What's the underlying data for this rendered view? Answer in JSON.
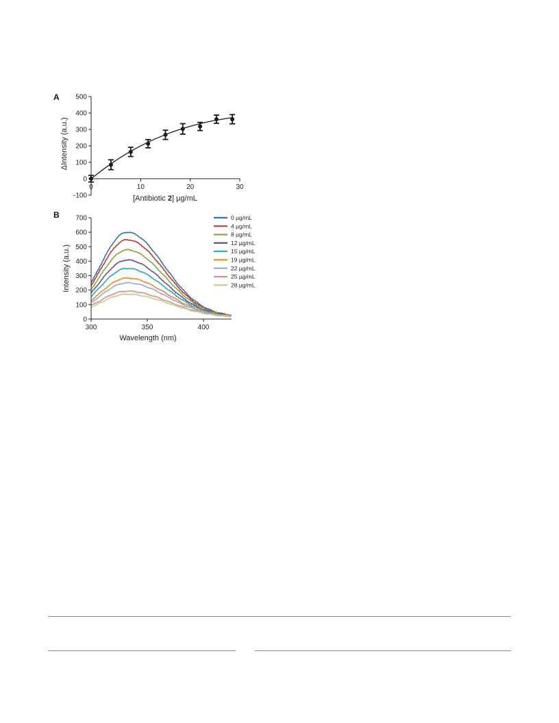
{
  "chart_data": [
    {
      "panel": "A",
      "type": "scatter",
      "xlabel_prefix": "[Antibiotic ",
      "xlabel_bold": "2",
      "xlabel_suffix": "] µg/mL",
      "ylabel": "ΔIntensity (a.u.)",
      "xlim": [
        0,
        30
      ],
      "ylim": [
        -100,
        500
      ],
      "xticks": [
        0,
        10,
        20,
        30
      ],
      "yticks": [
        -100,
        0,
        100,
        200,
        300,
        400,
        500
      ],
      "x": [
        0,
        4,
        8,
        11.5,
        15,
        18.5,
        22,
        25.3,
        28.5
      ],
      "y": [
        0,
        85,
        163,
        213,
        267,
        303,
        318,
        362,
        362
      ],
      "err": [
        20,
        30,
        28,
        25,
        28,
        32,
        25,
        25,
        28
      ],
      "fit": {
        "x": [
          0,
          2,
          4,
          6,
          8,
          10,
          12,
          14,
          16,
          18,
          20,
          22,
          24,
          26,
          28.5
        ],
        "y": [
          0,
          47,
          91,
          131,
          167,
          200,
          230,
          256,
          280,
          301,
          319,
          335,
          349,
          360,
          372
        ]
      },
      "marker_color": "#1a1a1a"
    },
    {
      "panel": "B",
      "type": "line",
      "xlabel": "Wavelength (nm)",
      "ylabel": "Intensity (a.u.)",
      "xlim": [
        300,
        425
      ],
      "ylim": [
        0,
        700
      ],
      "xticks": [
        300,
        350,
        400
      ],
      "yticks": [
        0,
        100,
        200,
        300,
        400,
        500,
        600,
        700
      ],
      "series": [
        {
          "name": "0 µg/mL",
          "color": "#3a6eb5",
          "peak": 600,
          "start": 250,
          "end": 27
        },
        {
          "name": "4 µg/mL",
          "color": "#c0392b",
          "peak": 548,
          "start": 232,
          "end": 25
        },
        {
          "name": "8 µg/mL",
          "color": "#7faa3c",
          "peak": 478,
          "start": 205,
          "end": 24
        },
        {
          "name": "12 µg/mL",
          "color": "#6a4c9c",
          "peak": 408,
          "start": 180,
          "end": 22
        },
        {
          "name": "15 µg/mL",
          "color": "#2aa6b8",
          "peak": 350,
          "start": 155,
          "end": 21
        },
        {
          "name": "19 µg/mL",
          "color": "#ef8a2b",
          "peak": 283,
          "start": 128,
          "end": 20
        },
        {
          "name": "22 µg/mL",
          "color": "#95a9d6",
          "peak": 250,
          "start": 112,
          "end": 19
        },
        {
          "name": "25 µg/mL",
          "color": "#d9908c",
          "peak": 193,
          "start": 92,
          "end": 18
        },
        {
          "name": "28 µg/mL",
          "color": "#c1cf8e",
          "peak": 172,
          "start": 80,
          "end": 17
        }
      ],
      "peak_wavelength": 332,
      "legend_position": "top-right"
    }
  ]
}
